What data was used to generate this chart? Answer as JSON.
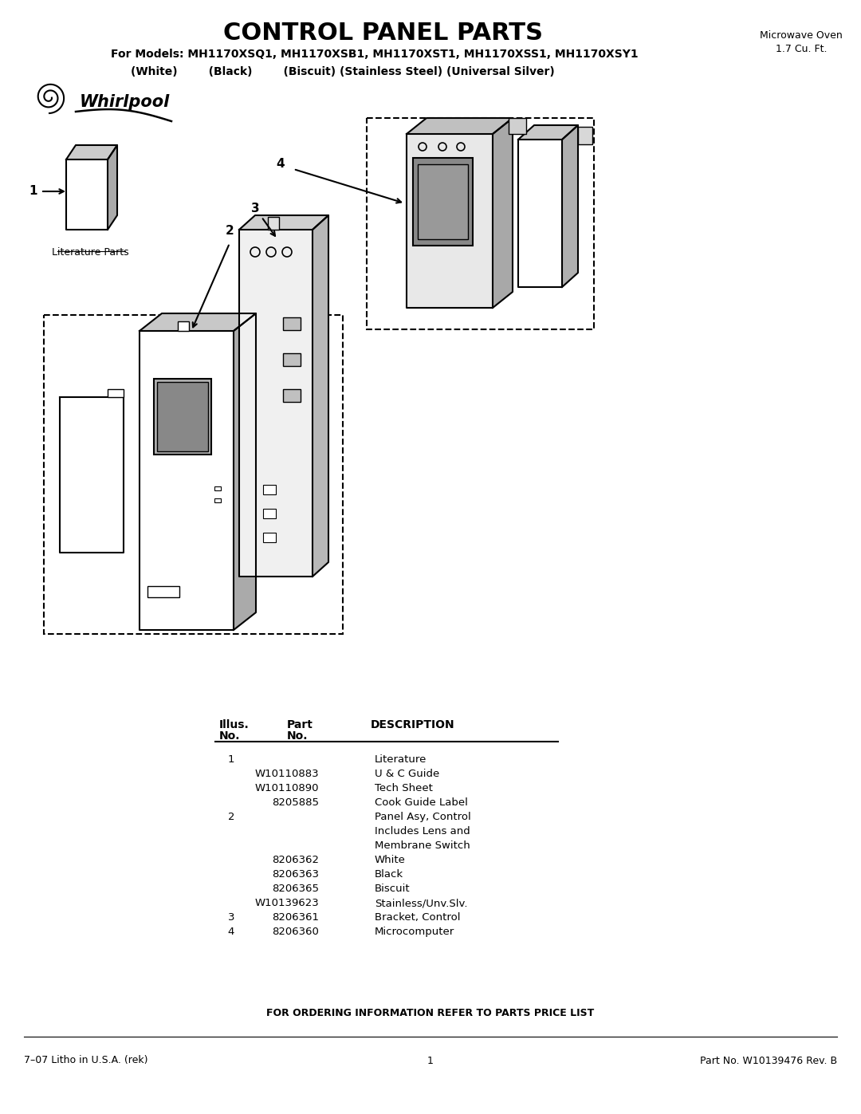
{
  "title": "CONTROL PANEL PARTS",
  "title_fontsize": 22,
  "subtitle": "For Models: MH1170XSQ1, MH1170XSB1, MH1170XST1, MH1170XSS1, MH1170XSY1",
  "subtitle2": "(White)        (Black)        (Biscuit) (Stainless Steel) (Universal Silver)",
  "top_right_text": "Microwave Oven\n1.7 Cu. Ft.",
  "footer_left": "7–07 Litho in U.S.A. (rek)",
  "footer_center": "1",
  "footer_right": "Part No. W10139476 Rev. B",
  "ordering_text": "FOR ORDERING INFORMATION REFER TO PARTS PRICE LIST",
  "background_color": "#ffffff",
  "text_color": "#000000",
  "table_data": [
    [
      "1",
      "",
      "Literature"
    ],
    [
      "",
      "W10110883",
      "U & C Guide"
    ],
    [
      "",
      "W10110890",
      "Tech Sheet"
    ],
    [
      "",
      "8205885",
      "Cook Guide Label"
    ],
    [
      "2",
      "",
      "Panel Asy, Control"
    ],
    [
      "",
      "",
      "Includes Lens and"
    ],
    [
      "",
      "",
      "Membrane Switch"
    ],
    [
      "",
      "8206362",
      "White"
    ],
    [
      "",
      "8206363",
      "Black"
    ],
    [
      "",
      "8206365",
      "Biscuit"
    ],
    [
      "",
      "W10139623",
      "Stainless/Unv.Slv."
    ],
    [
      "3",
      "8206361",
      "Bracket, Control"
    ],
    [
      "4",
      "8206360",
      "Microcomputer"
    ]
  ]
}
